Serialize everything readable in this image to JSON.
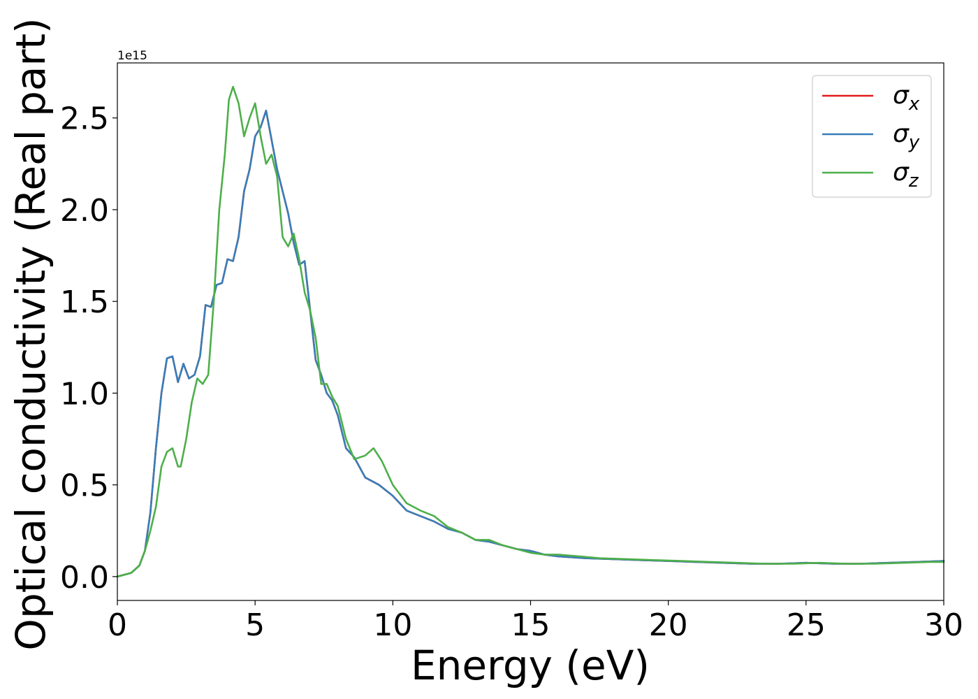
{
  "chart_data": {
    "type": "line",
    "xlabel": "Energy (eV)",
    "ylabel": "Optical conductivity (Real part)",
    "y_offset_label": "1e15",
    "xlim": [
      0,
      30
    ],
    "ylim": [
      -0.13,
      2.8
    ],
    "xticks": [
      0,
      5,
      10,
      15,
      20,
      25,
      30
    ],
    "xtick_labels": [
      "0",
      "5",
      "10",
      "15",
      "20",
      "25",
      "30"
    ],
    "yticks": [
      0.0,
      0.5,
      1.0,
      1.5,
      2.0,
      2.5
    ],
    "ytick_labels": [
      "0.0",
      "0.5",
      "1.0",
      "1.5",
      "2.0",
      "2.5"
    ],
    "grid": false,
    "legend_position": "top-right",
    "series": [
      {
        "name": "σx",
        "symbol": "σ",
        "subscript": "x",
        "color": "#e41a1c",
        "x": [
          0,
          0.5,
          0.8,
          1.0,
          1.2,
          1.4,
          1.6,
          1.8,
          2.0,
          2.2,
          2.4,
          2.6,
          2.8,
          3.0,
          3.2,
          3.4,
          3.6,
          3.8,
          4.0,
          4.2,
          4.4,
          4.6,
          4.8,
          5.0,
          5.2,
          5.4,
          5.6,
          5.8,
          6.0,
          6.2,
          6.4,
          6.6,
          6.8,
          7.0,
          7.2,
          7.4,
          7.6,
          7.8,
          8.0,
          8.3,
          8.6,
          9.0,
          9.5,
          10.0,
          10.5,
          11.0,
          11.5,
          12.0,
          12.5,
          13.0,
          13.5,
          14.0,
          14.5,
          15.0,
          15.5,
          16.0,
          17.0,
          18.0,
          19.0,
          20.0,
          21.0,
          22.0,
          23.0,
          24.0,
          25.0,
          26.0,
          27.0,
          28.0,
          29.0,
          30.0
        ],
        "values": [
          0.0,
          0.02,
          0.06,
          0.14,
          0.35,
          0.7,
          1.0,
          1.19,
          1.2,
          1.06,
          1.16,
          1.08,
          1.1,
          1.2,
          1.48,
          1.47,
          1.59,
          1.6,
          1.73,
          1.72,
          1.85,
          2.1,
          2.22,
          2.4,
          2.45,
          2.54,
          2.38,
          2.22,
          2.1,
          1.98,
          1.82,
          1.7,
          1.72,
          1.45,
          1.18,
          1.1,
          1.0,
          0.96,
          0.88,
          0.7,
          0.65,
          0.54,
          0.5,
          0.44,
          0.36,
          0.33,
          0.3,
          0.26,
          0.24,
          0.2,
          0.19,
          0.17,
          0.15,
          0.14,
          0.12,
          0.11,
          0.1,
          0.095,
          0.09,
          0.085,
          0.08,
          0.075,
          0.07,
          0.07,
          0.075,
          0.07,
          0.07,
          0.075,
          0.08,
          0.085
        ]
      },
      {
        "name": "σy",
        "symbol": "σ",
        "subscript": "y",
        "color": "#377eb8",
        "x": [
          0,
          0.5,
          0.8,
          1.0,
          1.2,
          1.4,
          1.6,
          1.8,
          2.0,
          2.2,
          2.4,
          2.6,
          2.8,
          3.0,
          3.2,
          3.4,
          3.6,
          3.8,
          4.0,
          4.2,
          4.4,
          4.6,
          4.8,
          5.0,
          5.2,
          5.4,
          5.6,
          5.8,
          6.0,
          6.2,
          6.4,
          6.6,
          6.8,
          7.0,
          7.2,
          7.4,
          7.6,
          7.8,
          8.0,
          8.3,
          8.6,
          9.0,
          9.5,
          10.0,
          10.5,
          11.0,
          11.5,
          12.0,
          12.5,
          13.0,
          13.5,
          14.0,
          14.5,
          15.0,
          15.5,
          16.0,
          17.0,
          18.0,
          19.0,
          20.0,
          21.0,
          22.0,
          23.0,
          24.0,
          25.0,
          26.0,
          27.0,
          28.0,
          29.0,
          30.0
        ],
        "values": [
          0.0,
          0.02,
          0.06,
          0.14,
          0.35,
          0.7,
          1.0,
          1.19,
          1.2,
          1.06,
          1.16,
          1.08,
          1.1,
          1.2,
          1.48,
          1.47,
          1.59,
          1.6,
          1.73,
          1.72,
          1.85,
          2.1,
          2.22,
          2.4,
          2.45,
          2.54,
          2.38,
          2.22,
          2.1,
          1.98,
          1.82,
          1.7,
          1.72,
          1.45,
          1.18,
          1.1,
          1.0,
          0.96,
          0.88,
          0.7,
          0.65,
          0.54,
          0.5,
          0.44,
          0.36,
          0.33,
          0.3,
          0.26,
          0.24,
          0.2,
          0.19,
          0.17,
          0.15,
          0.14,
          0.12,
          0.11,
          0.1,
          0.095,
          0.09,
          0.085,
          0.08,
          0.075,
          0.07,
          0.07,
          0.075,
          0.07,
          0.07,
          0.075,
          0.08,
          0.085
        ]
      },
      {
        "name": "σz",
        "symbol": "σ",
        "subscript": "z",
        "color": "#4daf4a",
        "x": [
          0,
          0.5,
          0.8,
          1.0,
          1.2,
          1.4,
          1.6,
          1.8,
          2.0,
          2.2,
          2.3,
          2.5,
          2.7,
          2.9,
          3.1,
          3.3,
          3.5,
          3.7,
          3.9,
          4.05,
          4.2,
          4.4,
          4.6,
          4.8,
          5.0,
          5.2,
          5.4,
          5.6,
          5.8,
          6.0,
          6.2,
          6.4,
          6.6,
          6.8,
          7.0,
          7.2,
          7.4,
          7.6,
          7.8,
          8.0,
          8.3,
          8.6,
          9.0,
          9.3,
          9.6,
          10.0,
          10.5,
          11.0,
          11.5,
          12.0,
          12.5,
          13.0,
          13.5,
          14.0,
          14.5,
          15.0,
          15.5,
          16.0,
          16.8,
          17.5,
          18.5,
          19.5,
          20.5,
          21.5,
          22.5,
          23.5,
          24.5,
          25.5,
          26.5,
          27.5,
          28.5,
          29.5,
          30.0
        ],
        "values": [
          0.0,
          0.02,
          0.06,
          0.14,
          0.25,
          0.38,
          0.6,
          0.68,
          0.7,
          0.6,
          0.6,
          0.75,
          0.95,
          1.08,
          1.05,
          1.1,
          1.5,
          2.0,
          2.3,
          2.6,
          2.67,
          2.58,
          2.4,
          2.5,
          2.58,
          2.4,
          2.25,
          2.3,
          2.18,
          1.85,
          1.8,
          1.87,
          1.73,
          1.55,
          1.45,
          1.3,
          1.05,
          1.05,
          0.98,
          0.93,
          0.75,
          0.64,
          0.66,
          0.7,
          0.63,
          0.5,
          0.4,
          0.36,
          0.33,
          0.27,
          0.24,
          0.2,
          0.2,
          0.17,
          0.15,
          0.13,
          0.12,
          0.12,
          0.11,
          0.1,
          0.095,
          0.09,
          0.085,
          0.08,
          0.075,
          0.07,
          0.07,
          0.075,
          0.07,
          0.07,
          0.075,
          0.08,
          0.08
        ]
      }
    ]
  }
}
